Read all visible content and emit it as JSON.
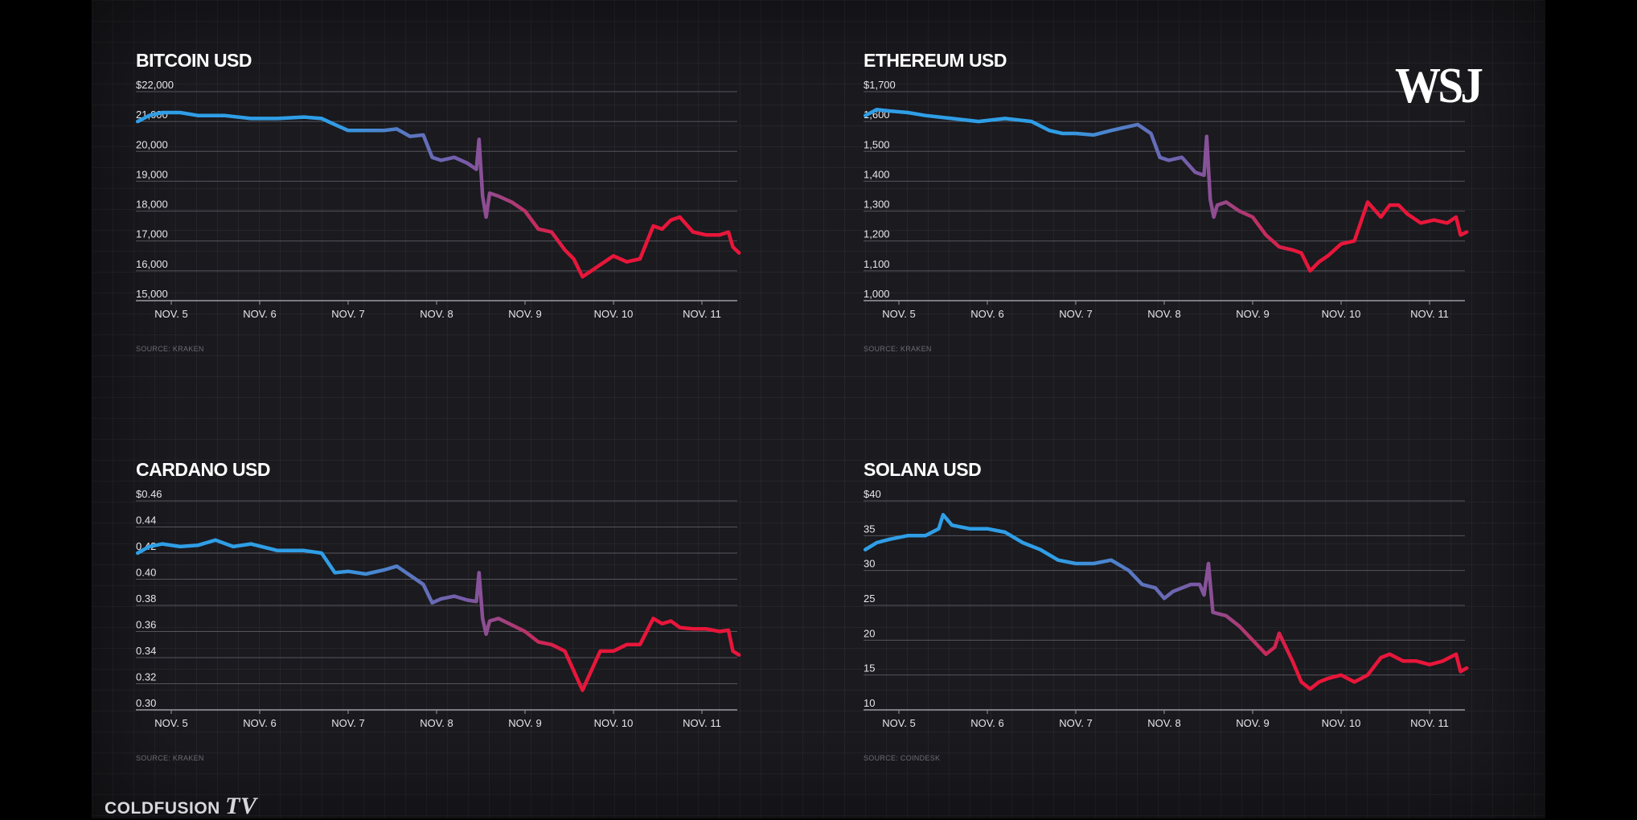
{
  "brand": {
    "wsj": "WSJ",
    "coldfusion": "COLDFUSION",
    "coldfusion_tv": "TV"
  },
  "colors": {
    "start": "#2f9ee6",
    "mid": "#7a5aa6",
    "end": "#e8163a",
    "background": "#1a1a1f"
  },
  "charts": [
    {
      "title": "BITCOIN USD",
      "source": "SOURCE: KRAKEN",
      "ytick_labels": [
        "$22,000",
        "21,000",
        "20,000",
        "19,000",
        "18,000",
        "17,000",
        "16,000",
        "15,000"
      ],
      "xtick_labels": [
        "NOV. 5",
        "NOV. 6",
        "NOV. 7",
        "NOV. 8",
        "NOV. 9",
        "NOV. 10",
        "NOV. 11"
      ]
    },
    {
      "title": "ETHEREUM USD",
      "source": "SOURCE: KRAKEN",
      "ytick_labels": [
        "$1,700",
        "1,600",
        "1,500",
        "1,400",
        "1,300",
        "1,200",
        "1,100",
        "1,000"
      ],
      "xtick_labels": [
        "NOV. 5",
        "NOV. 6",
        "NOV. 7",
        "NOV. 8",
        "NOV. 9",
        "NOV. 10",
        "NOV. 11"
      ]
    },
    {
      "title": "CARDANO USD",
      "source": "SOURCE: KRAKEN",
      "ytick_labels": [
        "$0.46",
        "0.44",
        "0.42",
        "0.40",
        "0.38",
        "0.36",
        "0.34",
        "0.32",
        "0.30"
      ],
      "xtick_labels": [
        "NOV. 5",
        "NOV. 6",
        "NOV. 7",
        "NOV. 8",
        "NOV. 9",
        "NOV. 10",
        "NOV. 11"
      ]
    },
    {
      "title": "SOLANA USD",
      "source": "SOURCE: COINDESK",
      "ytick_labels": [
        "$40",
        "35",
        "30",
        "25",
        "20",
        "15",
        "10"
      ],
      "xtick_labels": [
        "NOV. 5",
        "NOV. 6",
        "NOV. 7",
        "NOV. 8",
        "NOV. 9",
        "NOV. 10",
        "NOV. 11"
      ]
    }
  ],
  "chart_data": [
    {
      "type": "line",
      "title": "BITCOIN USD",
      "ylim": [
        15000,
        22000
      ],
      "yticks": [
        22000,
        21000,
        20000,
        19000,
        18000,
        17000,
        16000,
        15000
      ],
      "xlim": [
        4.6,
        11.4
      ],
      "xticks": [
        5,
        6,
        7,
        8,
        9,
        10,
        11
      ],
      "x_unit": "November day",
      "grid": true,
      "series": [
        {
          "x": [
            4.62,
            4.75,
            4.9,
            5.1,
            5.3,
            5.6,
            5.9,
            6.2,
            6.5,
            6.7,
            6.85,
            7.0,
            7.2,
            7.4,
            7.55,
            7.7,
            7.85,
            7.95,
            8.05,
            8.2,
            8.35,
            8.45,
            8.48,
            8.52,
            8.56,
            8.6,
            8.7,
            8.85,
            9.0,
            9.15,
            9.3,
            9.45,
            9.55,
            9.65,
            9.75,
            9.85,
            10.0,
            10.15,
            10.3,
            10.45,
            10.55,
            10.65,
            10.75,
            10.9,
            11.05,
            11.2,
            11.3,
            11.35,
            11.42
          ],
          "y": [
            21000,
            21200,
            21300,
            21300,
            21200,
            21200,
            21100,
            21100,
            21150,
            21100,
            20900,
            20700,
            20700,
            20700,
            20750,
            20500,
            20550,
            19800,
            19700,
            19800,
            19600,
            19400,
            20400,
            18500,
            17800,
            18600,
            18500,
            18300,
            18000,
            17400,
            17300,
            16700,
            16400,
            15800,
            16000,
            16200,
            16500,
            16300,
            16400,
            17500,
            17400,
            17700,
            17800,
            17300,
            17200,
            17200,
            17300,
            16800,
            16600
          ]
        }
      ]
    },
    {
      "type": "line",
      "title": "ETHEREUM USD",
      "ylim": [
        1000,
        1700
      ],
      "yticks": [
        1700,
        1600,
        1500,
        1400,
        1300,
        1200,
        1100,
        1000
      ],
      "xlim": [
        4.6,
        11.4
      ],
      "xticks": [
        5,
        6,
        7,
        8,
        9,
        10,
        11
      ],
      "x_unit": "November day",
      "grid": true,
      "series": [
        {
          "x": [
            4.62,
            4.75,
            4.9,
            5.1,
            5.3,
            5.6,
            5.9,
            6.2,
            6.5,
            6.7,
            6.85,
            7.0,
            7.2,
            7.4,
            7.55,
            7.7,
            7.85,
            7.95,
            8.05,
            8.2,
            8.35,
            8.45,
            8.48,
            8.52,
            8.56,
            8.6,
            8.7,
            8.85,
            9.0,
            9.15,
            9.3,
            9.45,
            9.55,
            9.65,
            9.75,
            9.85,
            10.0,
            10.15,
            10.3,
            10.45,
            10.55,
            10.65,
            10.75,
            10.9,
            11.05,
            11.2,
            11.3,
            11.35,
            11.42
          ],
          "y": [
            1620,
            1640,
            1635,
            1630,
            1620,
            1610,
            1600,
            1610,
            1600,
            1570,
            1560,
            1560,
            1555,
            1570,
            1580,
            1590,
            1560,
            1480,
            1470,
            1480,
            1430,
            1420,
            1550,
            1340,
            1280,
            1320,
            1330,
            1300,
            1280,
            1220,
            1180,
            1170,
            1160,
            1100,
            1130,
            1150,
            1190,
            1200,
            1330,
            1280,
            1320,
            1320,
            1290,
            1260,
            1270,
            1260,
            1280,
            1220,
            1230
          ]
        }
      ]
    },
    {
      "type": "line",
      "title": "CARDANO USD",
      "ylim": [
        0.3,
        0.46
      ],
      "yticks": [
        0.46,
        0.44,
        0.42,
        0.4,
        0.38,
        0.36,
        0.34,
        0.32,
        0.3
      ],
      "xlim": [
        4.6,
        11.4
      ],
      "xticks": [
        5,
        6,
        7,
        8,
        9,
        10,
        11
      ],
      "x_unit": "November day",
      "grid": true,
      "series": [
        {
          "x": [
            4.62,
            4.75,
            4.9,
            5.1,
            5.3,
            5.5,
            5.7,
            5.9,
            6.2,
            6.5,
            6.7,
            6.85,
            7.0,
            7.2,
            7.4,
            7.55,
            7.7,
            7.85,
            7.95,
            8.05,
            8.2,
            8.35,
            8.45,
            8.48,
            8.52,
            8.56,
            8.6,
            8.7,
            8.85,
            9.0,
            9.15,
            9.3,
            9.45,
            9.55,
            9.65,
            9.75,
            9.85,
            10.0,
            10.15,
            10.3,
            10.45,
            10.55,
            10.65,
            10.75,
            10.9,
            11.05,
            11.2,
            11.3,
            11.35,
            11.42
          ],
          "y": [
            0.42,
            0.425,
            0.427,
            0.425,
            0.426,
            0.43,
            0.425,
            0.427,
            0.422,
            0.422,
            0.42,
            0.405,
            0.406,
            0.404,
            0.407,
            0.41,
            0.403,
            0.396,
            0.382,
            0.385,
            0.387,
            0.384,
            0.383,
            0.405,
            0.37,
            0.358,
            0.368,
            0.37,
            0.365,
            0.36,
            0.352,
            0.35,
            0.345,
            0.33,
            0.315,
            0.33,
            0.345,
            0.345,
            0.35,
            0.35,
            0.37,
            0.366,
            0.368,
            0.363,
            0.362,
            0.362,
            0.36,
            0.361,
            0.345,
            0.342
          ]
        }
      ]
    },
    {
      "type": "line",
      "title": "SOLANA USD",
      "ylim": [
        10,
        40
      ],
      "yticks": [
        40,
        35,
        30,
        25,
        20,
        15,
        10
      ],
      "xlim": [
        4.6,
        11.4
      ],
      "xticks": [
        5,
        6,
        7,
        8,
        9,
        10,
        11
      ],
      "x_unit": "November day",
      "grid": true,
      "series": [
        {
          "x": [
            4.62,
            4.75,
            4.9,
            5.1,
            5.3,
            5.45,
            5.5,
            5.6,
            5.8,
            6.0,
            6.2,
            6.4,
            6.6,
            6.8,
            7.0,
            7.2,
            7.4,
            7.6,
            7.75,
            7.9,
            8.0,
            8.1,
            8.3,
            8.4,
            8.45,
            8.5,
            8.55,
            8.7,
            8.85,
            9.0,
            9.15,
            9.25,
            9.3,
            9.45,
            9.55,
            9.65,
            9.75,
            9.85,
            10.0,
            10.15,
            10.3,
            10.45,
            10.55,
            10.7,
            10.85,
            11.0,
            11.15,
            11.3,
            11.35,
            11.42
          ],
          "y": [
            33,
            34,
            34.5,
            35,
            35,
            36,
            38,
            36.5,
            36,
            36,
            35.5,
            34,
            33,
            31.5,
            31,
            31,
            31.5,
            30,
            28,
            27.5,
            26,
            27,
            28,
            28,
            26.5,
            31,
            24,
            23.5,
            22,
            20,
            18,
            19,
            21,
            17,
            14,
            13,
            14,
            14.5,
            15,
            14,
            15,
            17.5,
            18,
            17,
            17,
            16.5,
            17,
            18,
            15.5,
            16
          ]
        }
      ]
    }
  ]
}
